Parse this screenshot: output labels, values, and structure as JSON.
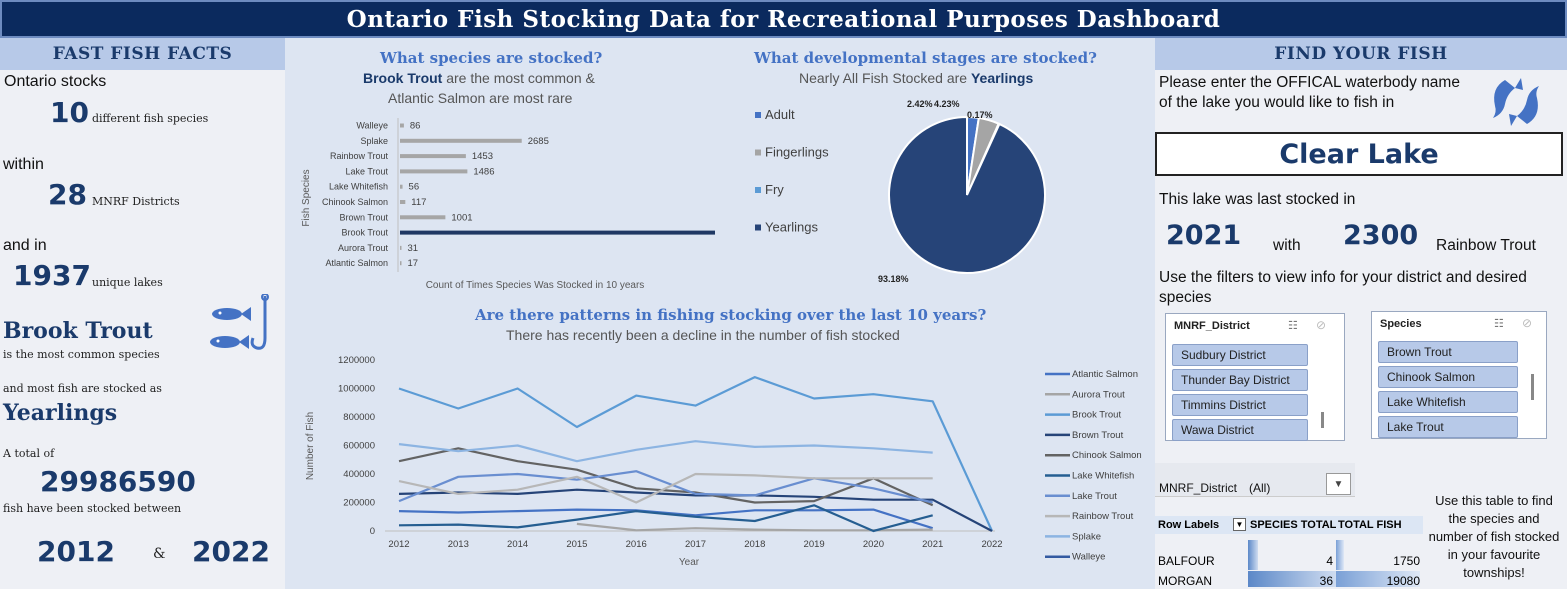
{
  "title": "Ontario Fish Stocking Data for Recreational Purposes Dashboard",
  "facts": {
    "header": "FAST FISH FACTS",
    "ontario_stocks": "Ontario stocks",
    "species_count": "10",
    "species_label": "different fish species",
    "within": "within",
    "districts_count": "28",
    "districts_label": "MNRF Districts",
    "and_in": "and in",
    "lakes_count": "1937",
    "lakes_label": "unique lakes",
    "common_species": "Brook Trout",
    "common_label": "is the most common species",
    "stage_intro": "and most fish are stocked as",
    "stage": "Yearlings",
    "total_intro": "A total of",
    "total_fish": "29986590",
    "total_label": "fish have been stocked between",
    "year_start": "2012",
    "amp": "&",
    "year_end": "2022"
  },
  "species_section": {
    "title": "What species are stocked?",
    "subtitle_bold": "Brook Trout",
    "subtitle_rest": " are the most common &",
    "subtitle_line2": "Atlantic Salmon are most rare",
    "chart_data": {
      "type": "bar",
      "orientation": "horizontal",
      "categories": [
        "Walleye",
        "Splake",
        "Rainbow Trout",
        "Lake Trout",
        "Lake  Whitefish",
        "Chinook Salmon",
        "Brown Trout",
        "Brook Trout",
        "Aurora Trout",
        "Atlantic Salmon"
      ],
      "values": [
        86,
        2685,
        1453,
        1486,
        56,
        117,
        1001,
        7027,
        31,
        17
      ],
      "xlabel": "Count of Times Species Was Stocked in 10 years",
      "ylabel": "Fish Species",
      "xlim": [
        0,
        7500
      ],
      "highlight": "Brook Trout",
      "bar_color": "#a6a6a6",
      "highlight_color": "#1f3864"
    }
  },
  "stages_section": {
    "title": "What developmental stages are stocked?",
    "subtitle_rest": "Nearly All Fish Stocked are ",
    "subtitle_bold": "Yearlings",
    "chart_data": {
      "type": "pie",
      "labels": [
        "Adult",
        "Fingerlings",
        "Fry",
        "Yearlings"
      ],
      "values": [
        2.42,
        4.23,
        0.17,
        93.18
      ],
      "data_labels": [
        "2.42%",
        "4.23%",
        "0.17%",
        "93.18%"
      ],
      "colors": [
        "#4472c4",
        "#a5a5a5",
        "#5b9bd5",
        "#264478"
      ],
      "legend": "left"
    }
  },
  "trend_section": {
    "title": "Are there patterns in fishing stocking over the last 10 years?",
    "subtitle": "There has recently been a decline in the number of fish stocked",
    "chart_data": {
      "type": "line",
      "x": [
        2012,
        2013,
        2014,
        2015,
        2016,
        2017,
        2018,
        2019,
        2020,
        2021,
        2022
      ],
      "ylabel": "Number of Fish",
      "xlabel": "Year",
      "ylim": [
        0,
        1200000
      ],
      "yticks": [
        "0",
        "200000",
        "400000",
        "600000",
        "800000",
        "1000000",
        "1200000"
      ],
      "legend": "right",
      "series": [
        {
          "name": "Atlantic Salmon",
          "color": "#4472c4",
          "values": [
            140000,
            130000,
            140000,
            150000,
            145000,
            110000,
            145000,
            145000,
            150000,
            20000,
            null
          ]
        },
        {
          "name": "Aurora Trout",
          "color": "#a5a5a5",
          "values": [
            null,
            null,
            null,
            50000,
            5000,
            20000,
            10000,
            5000,
            5000,
            10000,
            null
          ]
        },
        {
          "name": "Brook Trout",
          "color": "#5b9bd5",
          "values": [
            1000000,
            860000,
            1000000,
            730000,
            950000,
            880000,
            1080000,
            930000,
            960000,
            910000,
            0
          ]
        },
        {
          "name": "Brown Trout",
          "color": "#264478",
          "values": [
            260000,
            270000,
            260000,
            290000,
            270000,
            250000,
            250000,
            240000,
            220000,
            220000,
            0
          ]
        },
        {
          "name": "Chinook Salmon",
          "color": "#636363",
          "values": [
            490000,
            580000,
            490000,
            430000,
            300000,
            270000,
            200000,
            210000,
            370000,
            180000,
            null
          ]
        },
        {
          "name": "Lake  Whitefish",
          "color": "#255e91",
          "values": [
            40000,
            45000,
            25000,
            80000,
            140000,
            100000,
            70000,
            180000,
            0,
            110000,
            null
          ]
        },
        {
          "name": "Lake Trout",
          "color": "#698ed0",
          "values": [
            210000,
            380000,
            400000,
            360000,
            420000,
            260000,
            250000,
            370000,
            300000,
            200000,
            null
          ]
        },
        {
          "name": "Rainbow Trout",
          "color": "#b7b7b7",
          "values": [
            350000,
            260000,
            290000,
            380000,
            200000,
            400000,
            390000,
            370000,
            370000,
            370000,
            null
          ]
        },
        {
          "name": "Splake",
          "color": "#8cb4e2",
          "values": [
            610000,
            560000,
            600000,
            490000,
            570000,
            630000,
            590000,
            600000,
            580000,
            550000,
            null
          ]
        },
        {
          "name": "Walleye",
          "color": "#335aa1",
          "values": [
            null,
            null,
            null,
            null,
            null,
            null,
            null,
            null,
            null,
            null,
            null
          ]
        }
      ]
    }
  },
  "find_fish": {
    "header": "FIND YOUR FISH",
    "prompt": "Please enter the OFFICAL waterbody name of the lake you would like to fish in",
    "lake_name": "Clear Lake",
    "last_stocked_text": "This lake was last stocked in",
    "last_year": "2021",
    "with": "with",
    "last_count": "2300",
    "last_species": "Rainbow Trout",
    "filter_text": "Use the filters to view info for your district and desired species",
    "district_slicer": {
      "title": "MNRF_District",
      "items": [
        "Sudbury District",
        "Thunder Bay District",
        "Timmins District",
        "Wawa District"
      ]
    },
    "species_slicer": {
      "title": "Species",
      "items": [
        "Brown Trout",
        "Chinook Salmon",
        "Lake  Whitefish",
        "Lake Trout"
      ]
    },
    "pivot_filter_label": "MNRF_District",
    "pivot_filter_value": "(All)",
    "pivot": {
      "headers": [
        "Row Labels",
        "SPECIES TOTAL",
        "TOTAL FISH"
      ],
      "rows": [
        {
          "label": "BALFOUR",
          "species_total": "4",
          "total_fish": "1750",
          "species_frac": 0.11,
          "fish_frac": 0.09
        },
        {
          "label": "MORGAN",
          "species_total": "36",
          "total_fish": "19080",
          "species_frac": 1.0,
          "fish_frac": 1.0
        }
      ]
    },
    "table_hint": "Use this table to find the species and number of fish stocked in your favourite townships!"
  },
  "icons": {
    "fish_hook": "fish-hook-icon",
    "two_fish": "two-fish-icon",
    "filter": "multi-select-icon",
    "clear_filter": "clear-filter-icon",
    "dropdown": "chevron-down-icon"
  }
}
